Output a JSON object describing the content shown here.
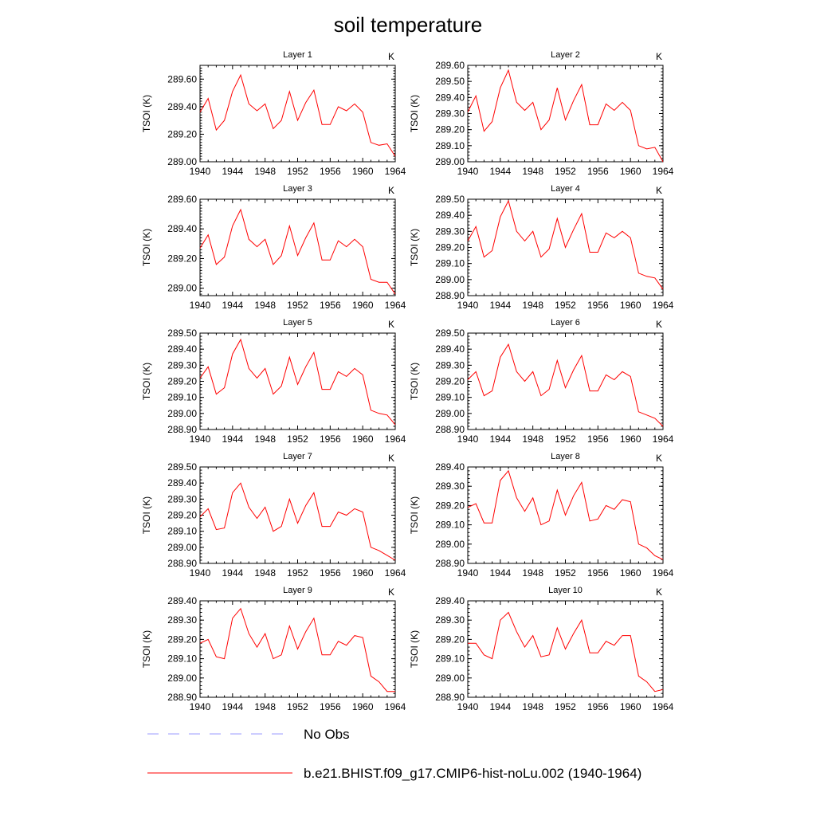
{
  "title": "soil temperature",
  "chart_data": {
    "type": "line",
    "title": "soil temperature",
    "xlim": [
      1940,
      1964
    ],
    "x_ticks": [
      "1940",
      "1944",
      "1948",
      "1952",
      "1956",
      "1960",
      "1964"
    ],
    "x": [
      1940,
      1941,
      1942,
      1943,
      1944,
      1945,
      1946,
      1947,
      1948,
      1949,
      1950,
      1951,
      1952,
      1953,
      1954,
      1955,
      1956,
      1957,
      1958,
      1959,
      1960,
      1961,
      1962,
      1963,
      1964
    ],
    "series_color": "#ff0000",
    "obs_color": "#9999ff",
    "panels": [
      {
        "title": "Layer 1",
        "units": "K",
        "ylabel": "TSOI  (K)",
        "ylim": [
          289.0,
          289.7
        ],
        "y_ticks": [
          "289.00",
          "289.20",
          "289.40",
          "289.60"
        ],
        "values": [
          289.36,
          289.46,
          289.23,
          289.3,
          289.51,
          289.63,
          289.42,
          289.37,
          289.42,
          289.24,
          289.3,
          289.51,
          289.3,
          289.43,
          289.52,
          289.27,
          289.27,
          289.4,
          289.37,
          289.42,
          289.36,
          289.14,
          289.12,
          289.13,
          289.04
        ]
      },
      {
        "title": "Layer 2",
        "units": "K",
        "ylabel": "TSOI  (K)",
        "ylim": [
          289.0,
          289.6
        ],
        "y_ticks": [
          "289.00",
          "289.10",
          "289.20",
          "289.30",
          "289.40",
          "289.50",
          "289.60"
        ],
        "values": [
          289.31,
          289.41,
          289.19,
          289.25,
          289.46,
          289.57,
          289.37,
          289.32,
          289.37,
          289.2,
          289.26,
          289.46,
          289.26,
          289.38,
          289.48,
          289.23,
          289.23,
          289.36,
          289.32,
          289.37,
          289.32,
          289.1,
          289.08,
          289.09,
          289.0
        ]
      },
      {
        "title": "Layer 3",
        "units": "K",
        "ylabel": "TSOI  (K)",
        "ylim": [
          288.95,
          289.6
        ],
        "y_ticks": [
          "289.00",
          "289.20",
          "289.40",
          "289.60"
        ],
        "values": [
          289.27,
          289.36,
          289.16,
          289.21,
          289.42,
          289.53,
          289.33,
          289.28,
          289.33,
          289.16,
          289.22,
          289.42,
          289.22,
          289.34,
          289.44,
          289.19,
          289.19,
          289.32,
          289.28,
          289.33,
          289.28,
          289.06,
          289.04,
          289.04,
          288.96
        ]
      },
      {
        "title": "Layer 4",
        "units": "K",
        "ylabel": "TSOI  (K)",
        "ylim": [
          288.9,
          289.5
        ],
        "y_ticks": [
          "288.90",
          "289.00",
          "289.10",
          "289.20",
          "289.30",
          "289.40",
          "289.50"
        ],
        "values": [
          289.24,
          289.33,
          289.14,
          289.18,
          289.39,
          289.49,
          289.3,
          289.24,
          289.3,
          289.14,
          289.19,
          289.38,
          289.2,
          289.31,
          289.41,
          289.17,
          289.17,
          289.29,
          289.26,
          289.3,
          289.26,
          289.04,
          289.02,
          289.01,
          288.94
        ]
      },
      {
        "title": "Layer 5",
        "units": "K",
        "ylabel": "TSOI  (K)",
        "ylim": [
          288.9,
          289.5
        ],
        "y_ticks": [
          "288.90",
          "289.00",
          "289.10",
          "289.20",
          "289.30",
          "289.40",
          "289.50"
        ],
        "values": [
          289.22,
          289.29,
          289.12,
          289.16,
          289.37,
          289.46,
          289.28,
          289.22,
          289.28,
          289.12,
          289.17,
          289.35,
          289.18,
          289.29,
          289.38,
          289.15,
          289.15,
          289.26,
          289.23,
          289.28,
          289.24,
          289.02,
          289.0,
          288.99,
          288.93
        ]
      },
      {
        "title": "Layer 6",
        "units": "K",
        "ylabel": "TSOI  (K)",
        "ylim": [
          288.9,
          289.5
        ],
        "y_ticks": [
          "288.90",
          "289.00",
          "289.10",
          "289.20",
          "289.30",
          "289.40",
          "289.50"
        ],
        "values": [
          289.21,
          289.26,
          289.11,
          289.14,
          289.35,
          289.43,
          289.26,
          289.2,
          289.26,
          289.11,
          289.15,
          289.33,
          289.16,
          289.27,
          289.36,
          289.14,
          289.14,
          289.24,
          289.21,
          289.26,
          289.23,
          289.01,
          288.99,
          288.97,
          288.92
        ]
      },
      {
        "title": "Layer 7",
        "units": "K",
        "ylabel": "TSOI  (K)",
        "ylim": [
          288.9,
          289.5
        ],
        "y_ticks": [
          "288.90",
          "289.00",
          "289.10",
          "289.20",
          "289.30",
          "289.40",
          "289.50"
        ],
        "values": [
          289.19,
          289.24,
          289.11,
          289.12,
          289.34,
          289.4,
          289.25,
          289.18,
          289.25,
          289.1,
          289.13,
          289.3,
          289.15,
          289.26,
          289.34,
          289.13,
          289.13,
          289.22,
          289.2,
          289.24,
          289.22,
          289.0,
          288.98,
          288.95,
          288.92
        ]
      },
      {
        "title": "Layer 8",
        "units": "K",
        "ylabel": "TSOI  (K)",
        "ylim": [
          288.9,
          289.4
        ],
        "y_ticks": [
          "288.90",
          "289.00",
          "289.10",
          "289.20",
          "289.30",
          "289.40"
        ],
        "values": [
          289.19,
          289.21,
          289.11,
          289.11,
          289.33,
          289.38,
          289.24,
          289.17,
          289.24,
          289.1,
          289.12,
          289.28,
          289.15,
          289.25,
          289.32,
          289.12,
          289.13,
          289.2,
          289.18,
          289.23,
          289.22,
          289.0,
          288.98,
          288.94,
          288.92
        ]
      },
      {
        "title": "Layer 9",
        "units": "K",
        "ylabel": "TSOI  (K)",
        "ylim": [
          288.9,
          289.4
        ],
        "y_ticks": [
          "288.90",
          "289.00",
          "289.10",
          "289.20",
          "289.30",
          "289.40"
        ],
        "values": [
          289.18,
          289.2,
          289.11,
          289.1,
          289.31,
          289.36,
          289.23,
          289.16,
          289.23,
          289.1,
          289.12,
          289.27,
          289.15,
          289.24,
          289.31,
          289.12,
          289.12,
          289.19,
          289.17,
          289.22,
          289.21,
          289.01,
          288.98,
          288.93,
          288.93
        ]
      },
      {
        "title": "Layer 10",
        "units": "K",
        "ylabel": "TSOI  (K)",
        "ylim": [
          288.9,
          289.4
        ],
        "y_ticks": [
          "288.90",
          "289.00",
          "289.10",
          "289.20",
          "289.30",
          "289.40"
        ],
        "values": [
          289.18,
          289.18,
          289.12,
          289.1,
          289.3,
          289.34,
          289.24,
          289.16,
          289.22,
          289.11,
          289.12,
          289.26,
          289.15,
          289.23,
          289.3,
          289.13,
          289.13,
          289.19,
          289.17,
          289.22,
          289.22,
          289.01,
          288.98,
          288.93,
          288.94
        ]
      }
    ],
    "legend": [
      {
        "label": "No Obs",
        "style": "dashed",
        "color": "#9999ff"
      },
      {
        "label": "b.e21.BHIST.f09_g17.CMIP6-hist-noLu.002 (1940-1964)",
        "style": "solid",
        "color": "#ff0000"
      }
    ]
  }
}
